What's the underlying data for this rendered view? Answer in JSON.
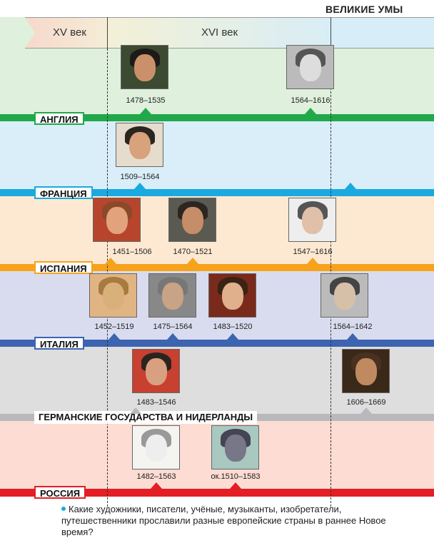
{
  "title": "ВЕЛИКИЕ УМЫ",
  "centuries": [
    "XV век",
    "XVI век"
  ],
  "colors": {
    "england": "#21a84a",
    "france": "#1aa9e0",
    "spain": "#f7a21b",
    "italy": "#3c64b0",
    "germany": "#b9b9bd",
    "russia": "#e31e24"
  },
  "rows": [
    {
      "label": "АНГЛИЯ",
      "dates": [
        "1478–1535",
        "1564–1616"
      ]
    },
    {
      "label": "ФРАНЦИЯ",
      "dates": [
        "1509–1564"
      ]
    },
    {
      "label": "ИСПАНИЯ",
      "dates": [
        "1451–1506",
        "1470–1521",
        "1547–1616"
      ]
    },
    {
      "label": "ИТАЛИЯ",
      "dates": [
        "1452–1519",
        "1475–1564",
        "1483–1520",
        "1564–1642"
      ]
    },
    {
      "label": "ГЕРМАНСКИЕ ГОСУДАРСТВА И НИДЕРЛАНДЫ",
      "dates": [
        "1483–1546",
        "1606–1669"
      ]
    },
    {
      "label": "РОССИЯ",
      "dates": [
        "1482–1563",
        "ок.1510–1583"
      ]
    }
  ],
  "question": "Какие художники, писатели, учёные, музыканты, изобретатели, путешественники прославили разные европейские страны в раннее Новое время?"
}
